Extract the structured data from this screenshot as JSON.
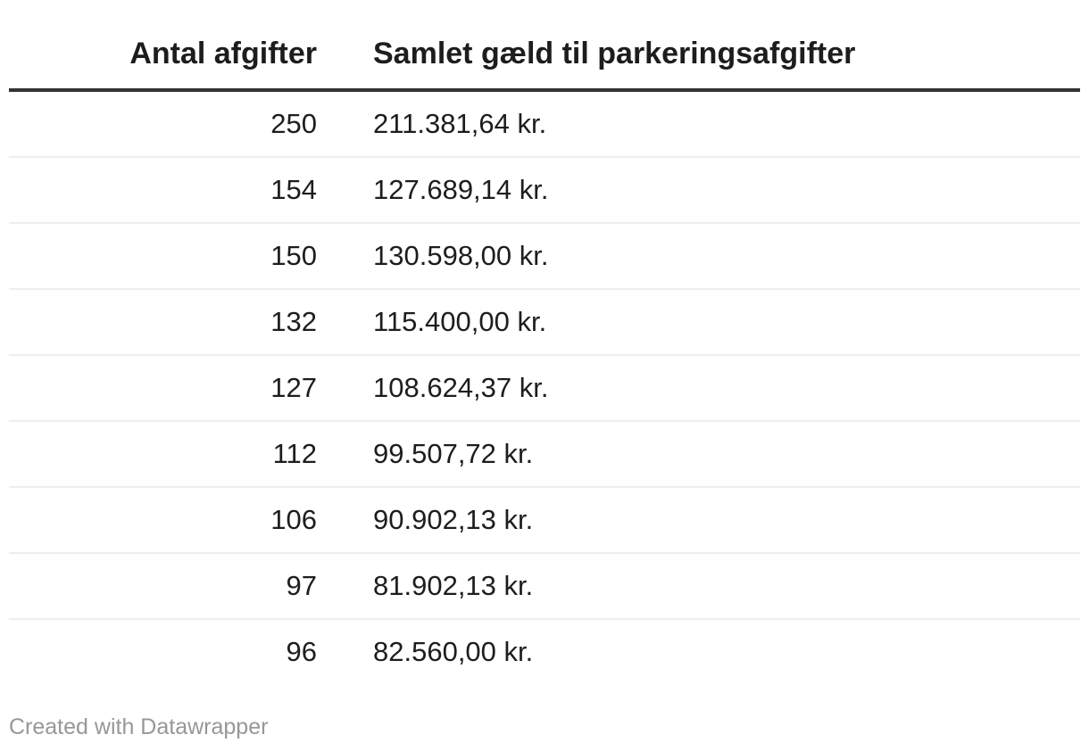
{
  "chart_data": {
    "type": "table",
    "title": "",
    "columns": [
      "Antal afgifter",
      "Samlet gæld til parkeringsafgifter"
    ],
    "rows": [
      {
        "count": 250,
        "debt": "211.381,64 kr."
      },
      {
        "count": 154,
        "debt": "127.689,14 kr."
      },
      {
        "count": 150,
        "debt": "130.598,00 kr."
      },
      {
        "count": 132,
        "debt": "115.400,00 kr."
      },
      {
        "count": 127,
        "debt": "108.624,37 kr."
      },
      {
        "count": 112,
        "debt": "99.507,72 kr."
      },
      {
        "count": 106,
        "debt": "90.902,13 kr."
      },
      {
        "count": 97,
        "debt": "81.902,13 kr."
      },
      {
        "count": 96,
        "debt": "82.560,00 kr."
      }
    ],
    "layout": {
      "count_column_align": "right",
      "debt_column_align": "left",
      "header_rule": true,
      "row_dividers": true
    }
  },
  "footer": {
    "attribution": "Created with Datawrapper"
  },
  "colors": {
    "background": "#ffffff",
    "text": "#1d1d1d",
    "header_rule": "#333333",
    "row_divider": "#eeeeee",
    "footer_text": "#979797"
  }
}
